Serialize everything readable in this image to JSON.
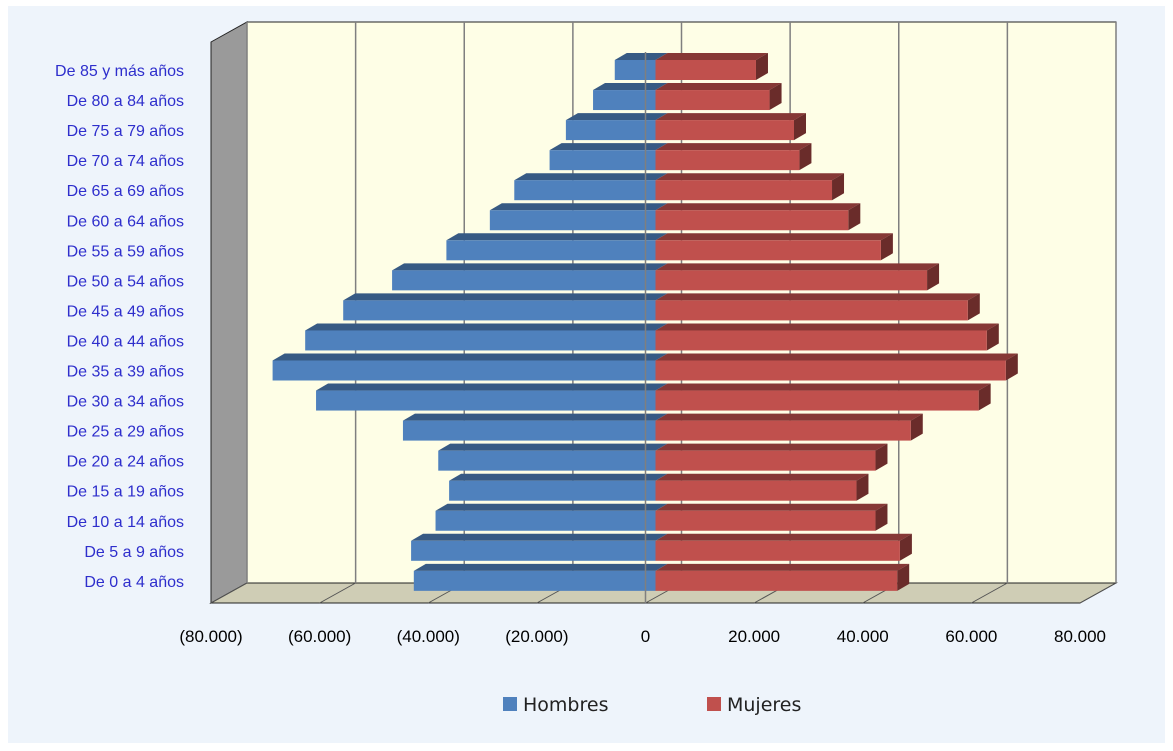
{
  "chart_data": {
    "type": "bar",
    "orientation": "horizontal",
    "stacked": true,
    "three_d": true,
    "title": "",
    "xlabel": "",
    "ylabel": "",
    "categories": [
      "De 0 a 4 años",
      "De 5 a 9 años",
      "De 10 a 14 años",
      "De 15 a 19 años",
      "De 20 a 24 años",
      "De 25 a 29 años",
      "De 30 a 34 años",
      "De 35 a 39 años",
      "De 40 a 44 años",
      "De 45 a 49 años",
      "De 50 a 54 años",
      "De 55 a 59 años",
      "De 60 a 64 años",
      "De 65 a 69 años",
      "De 70 a 74 años",
      "De 75 a 79 años",
      "De 80 a 84 años",
      "De 85 y más años"
    ],
    "series": [
      {
        "name": "Hombres",
        "color": "#4f81bd",
        "values": [
          -44500,
          -45000,
          -40500,
          -38000,
          -40000,
          -46500,
          -62500,
          -70500,
          -64500,
          -57500,
          -48500,
          -38500,
          -30500,
          -26000,
          -19500,
          -16500,
          -11500,
          -7500
        ]
      },
      {
        "name": "Mujeres",
        "color": "#c0504d",
        "values": [
          44500,
          45000,
          40500,
          37000,
          40500,
          47000,
          59500,
          64500,
          61000,
          57500,
          50000,
          41500,
          35500,
          32500,
          26500,
          25500,
          21000,
          18500
        ]
      }
    ],
    "xlim": [
      -80000,
      80000
    ],
    "x_ticks": [
      {
        "value": -80000,
        "label": "(80.000)"
      },
      {
        "value": -60000,
        "label": "(60.000)"
      },
      {
        "value": -40000,
        "label": "(40.000)"
      },
      {
        "value": -20000,
        "label": "(20.000)"
      },
      {
        "value": 0,
        "label": "0"
      },
      {
        "value": 20000,
        "label": "20.000"
      },
      {
        "value": 40000,
        "label": "40.000"
      },
      {
        "value": 60000,
        "label": "60.000"
      },
      {
        "value": 80000,
        "label": "80.000"
      }
    ],
    "grid": true,
    "legend_position": "bottom"
  }
}
